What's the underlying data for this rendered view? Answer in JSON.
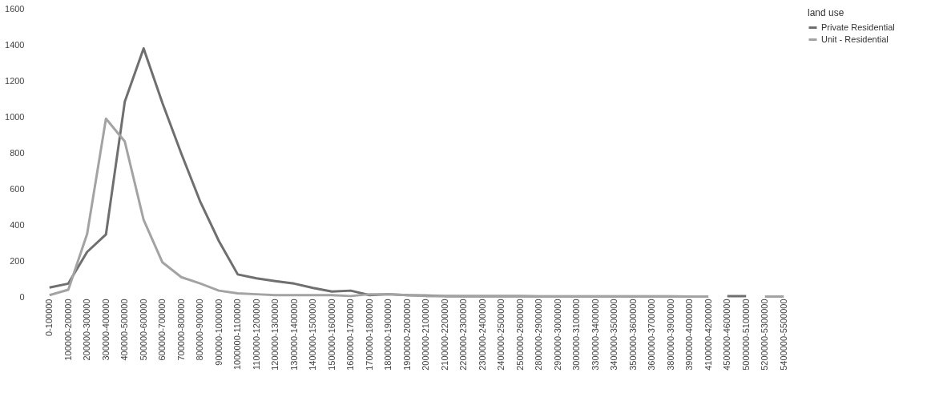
{
  "chart_data": {
    "type": "line",
    "legend_title": "land use",
    "legend": "right",
    "grid": false,
    "marker": "none",
    "line_style": "solid",
    "categories": [
      "0-100000",
      "100000-200000",
      "200000-300000",
      "300000-400000",
      "400000-500000",
      "500000-600000",
      "600000-700000",
      "700000-800000",
      "800000-900000",
      "900000-1000000",
      "1000000-1100000",
      "1100000-1200000",
      "1200000-1300000",
      "1300000-1400000",
      "1400000-1500000",
      "1500000-1600000",
      "1600000-1700000",
      "1700000-1800000",
      "1800000-1900000",
      "1900000-2000000",
      "2000000-2100000",
      "2100000-2200000",
      "2200000-2300000",
      "2300000-2400000",
      "2400000-2500000",
      "2500000-2600000",
      "2800000-2900000",
      "2900000-3000000",
      "3000000-3100000",
      "3300000-3400000",
      "3400000-3500000",
      "3500000-3600000",
      "3600000-3700000",
      "3800000-3900000",
      "3900000-4000000",
      "4100000-4200000",
      "4500000-4600000",
      "5000000-5100000",
      "5200000-5300000",
      "5400000-5500000"
    ],
    "ylim": [
      0,
      1600
    ],
    "yticks": [
      0,
      200,
      400,
      600,
      800,
      1000,
      1200,
      1400,
      1600
    ],
    "series": [
      {
        "name": "Private Residential",
        "color": "#6f6f6f",
        "values": [
          52,
          74,
          250,
          347,
          1084,
          1380,
          1077,
          797,
          531,
          310,
          125,
          103,
          88,
          74,
          50,
          30,
          35,
          10,
          15,
          10,
          8,
          5,
          5,
          5,
          5,
          5,
          3,
          3,
          3,
          3,
          3,
          3,
          3,
          3,
          2,
          null,
          5,
          5,
          null,
          null
        ]
      },
      {
        "name": "Unit - Residential",
        "color": "#a3a3a3",
        "values": [
          10,
          40,
          350,
          990,
          863,
          428,
          192,
          110,
          75,
          35,
          20,
          15,
          10,
          10,
          10,
          10,
          5,
          15,
          15,
          10,
          5,
          5,
          3,
          3,
          3,
          3,
          2,
          2,
          2,
          2,
          2,
          2,
          2,
          2,
          2,
          2,
          null,
          null,
          2,
          2
        ]
      }
    ]
  }
}
